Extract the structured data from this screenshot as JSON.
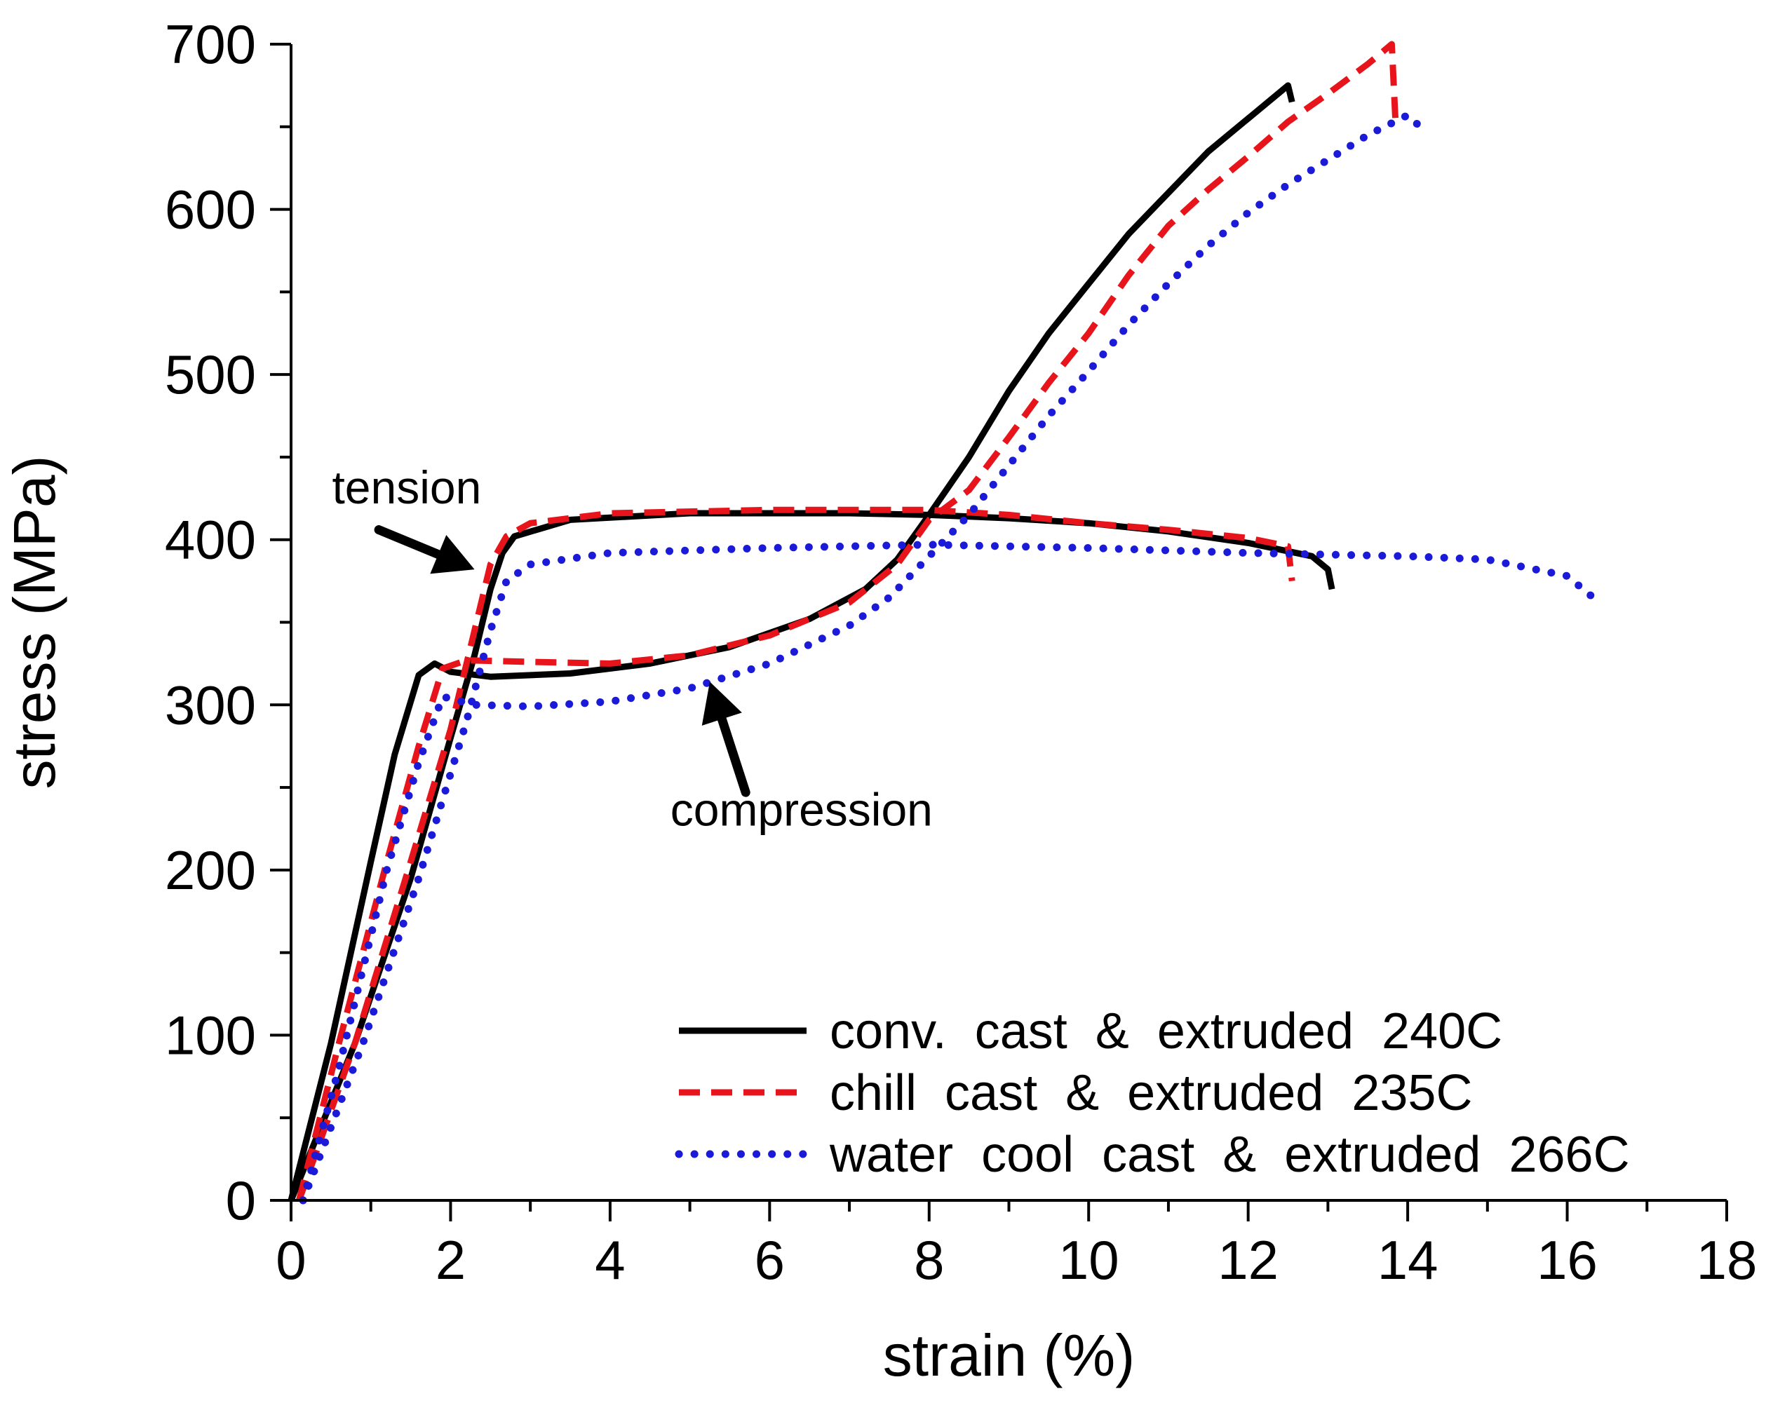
{
  "chart_data": {
    "type": "line",
    "title": "",
    "xlabel": "strain (%)",
    "ylabel": "stress (MPa)",
    "xlim": [
      0,
      18
    ],
    "ylim": [
      0,
      700
    ],
    "x_ticks": [
      0,
      2,
      4,
      6,
      8,
      10,
      12,
      14,
      16,
      18
    ],
    "y_ticks": [
      0,
      100,
      200,
      300,
      400,
      500,
      600,
      700
    ],
    "grid": false,
    "legend_position": "bottom-right",
    "series": [
      {
        "name": "conv.  cast  &  extruded  240C",
        "color": "#000000",
        "style": "solid",
        "curves": [
          [
            [
              0,
              0
            ],
            [
              0.5,
              95
            ],
            [
              1.0,
              205
            ],
            [
              1.3,
              270
            ],
            [
              1.6,
              318
            ],
            [
              1.8,
              325
            ],
            [
              2.0,
              320
            ],
            [
              2.5,
              317
            ],
            [
              3.5,
              319
            ],
            [
              4.5,
              325
            ],
            [
              5.5,
              335
            ],
            [
              6.5,
              352
            ],
            [
              7.2,
              370
            ],
            [
              7.6,
              388
            ],
            [
              8.0,
              415
            ],
            [
              8.5,
              450
            ],
            [
              9.0,
              490
            ],
            [
              9.5,
              525
            ],
            [
              10.0,
              555
            ],
            [
              10.5,
              585
            ],
            [
              11.0,
              610
            ],
            [
              11.5,
              635
            ],
            [
              12.0,
              655
            ],
            [
              12.5,
              675
            ],
            [
              12.55,
              665
            ]
          ],
          [
            [
              0,
              0
            ],
            [
              0.8,
              95
            ],
            [
              1.5,
              195
            ],
            [
              2.0,
              280
            ],
            [
              2.3,
              330
            ],
            [
              2.5,
              370
            ],
            [
              2.65,
              392
            ],
            [
              2.8,
              402
            ],
            [
              3.5,
              412
            ],
            [
              5,
              416
            ],
            [
              7,
              416
            ],
            [
              8,
              415
            ],
            [
              9,
              413
            ],
            [
              10,
              410
            ],
            [
              11,
              405
            ],
            [
              12,
              398
            ],
            [
              12.8,
              390
            ],
            [
              13.0,
              382
            ],
            [
              13.05,
              370
            ]
          ]
        ]
      },
      {
        "name": "chill  cast  &  extruded  235C",
        "color": "#e8141b",
        "style": "dashed",
        "curves": [
          [
            [
              0.1,
              0
            ],
            [
              0.6,
              95
            ],
            [
              1.2,
              205
            ],
            [
              1.6,
              275
            ],
            [
              1.9,
              322
            ],
            [
              2.2,
              327
            ],
            [
              3.0,
              326
            ],
            [
              4.0,
              325
            ],
            [
              5.0,
              330
            ],
            [
              6.0,
              342
            ],
            [
              7.0,
              362
            ],
            [
              7.6,
              385
            ],
            [
              8.0,
              412
            ],
            [
              8.5,
              430
            ],
            [
              9.0,
              462
            ],
            [
              9.5,
              495
            ],
            [
              10.0,
              525
            ],
            [
              10.5,
              560
            ],
            [
              11.0,
              590
            ],
            [
              11.5,
              612
            ],
            [
              12.0,
              632
            ],
            [
              12.5,
              653
            ],
            [
              13.0,
              670
            ],
            [
              13.5,
              688
            ],
            [
              13.8,
              700
            ],
            [
              13.85,
              650
            ]
          ],
          [
            [
              0.1,
              0
            ],
            [
              0.8,
              95
            ],
            [
              1.5,
              205
            ],
            [
              2.0,
              285
            ],
            [
              2.3,
              345
            ],
            [
              2.5,
              385
            ],
            [
              2.7,
              402
            ],
            [
              3.0,
              410
            ],
            [
              4,
              416
            ],
            [
              6,
              418
            ],
            [
              8,
              418
            ],
            [
              9,
              415
            ],
            [
              10,
              410
            ],
            [
              11,
              406
            ],
            [
              12,
              401
            ],
            [
              12.5,
              396
            ],
            [
              12.55,
              375
            ]
          ]
        ]
      },
      {
        "name": "water  cool  cast  &  extruded  266C",
        "color": "#1a1ad8",
        "style": "dotted",
        "curves": [
          [
            [
              0.15,
              0
            ],
            [
              0.6,
              80
            ],
            [
              1.2,
              200
            ],
            [
              1.6,
              265
            ],
            [
              1.9,
              305
            ],
            [
              2.3,
              300
            ],
            [
              3.0,
              299
            ],
            [
              4.0,
              302
            ],
            [
              5.0,
              310
            ],
            [
              6.0,
              325
            ],
            [
              7.0,
              348
            ],
            [
              7.5,
              365
            ],
            [
              8.0,
              390
            ],
            [
              8.5,
              415
            ],
            [
              9.0,
              445
            ],
            [
              9.5,
              475
            ],
            [
              10.0,
              502
            ],
            [
              10.5,
              530
            ],
            [
              11.0,
              555
            ],
            [
              11.5,
              578
            ],
            [
              12.0,
              598
            ],
            [
              12.5,
              615
            ],
            [
              13.0,
              630
            ],
            [
              13.5,
              645
            ],
            [
              14.0,
              657
            ],
            [
              14.2,
              648
            ]
          ],
          [
            [
              0.15,
              0
            ],
            [
              0.9,
              95
            ],
            [
              1.6,
              195
            ],
            [
              2.2,
              290
            ],
            [
              2.5,
              345
            ],
            [
              2.7,
              375
            ],
            [
              3.0,
              385
            ],
            [
              4,
              392
            ],
            [
              6,
              395
            ],
            [
              8,
              397
            ],
            [
              10,
              395
            ],
            [
              12,
              392
            ],
            [
              14,
              390
            ],
            [
              15,
              388
            ],
            [
              16,
              378
            ],
            [
              16.4,
              362
            ]
          ]
        ]
      }
    ],
    "annotations": [
      {
        "text": "tension",
        "x": 1.45,
        "y": 422,
        "arrow_from": [
          1.1,
          406
        ],
        "arrow_to": [
          2.3,
          382
        ]
      },
      {
        "text": "compression",
        "x": 6.4,
        "y": 227,
        "arrow_from": [
          5.7,
          247
        ],
        "arrow_to": [
          5.25,
          314
        ]
      }
    ]
  }
}
